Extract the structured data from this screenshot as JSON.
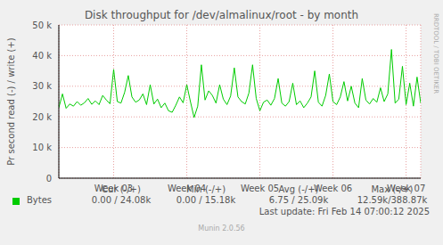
{
  "chart_data": {
    "type": "line",
    "title": "Disk throughput for /dev/almalinux/root - by month",
    "y_label": "Pr second read (-) / write (+)",
    "x": [
      2.25,
      2.3,
      2.35,
      2.4,
      2.45,
      2.5,
      2.55,
      2.6,
      2.65,
      2.7,
      2.75,
      2.8,
      2.85,
      2.9,
      2.95,
      3.0,
      3.05,
      3.1,
      3.15,
      3.2,
      3.25,
      3.3,
      3.35,
      3.4,
      3.45,
      3.5,
      3.55,
      3.6,
      3.65,
      3.7,
      3.75,
      3.8,
      3.85,
      3.9,
      3.95,
      4.0,
      4.05,
      4.1,
      4.15,
      4.2,
      4.25,
      4.3,
      4.35,
      4.4,
      4.45,
      4.5,
      4.55,
      4.6,
      4.65,
      4.7,
      4.75,
      4.8,
      4.85,
      4.9,
      4.95,
      5.0,
      5.05,
      5.1,
      5.15,
      5.2,
      5.25,
      5.3,
      5.35,
      5.4,
      5.45,
      5.5,
      5.55,
      5.6,
      5.65,
      5.7,
      5.75,
      5.8,
      5.85,
      5.9,
      5.95,
      6.0,
      6.05,
      6.1,
      6.15,
      6.2,
      6.25,
      6.3,
      6.35,
      6.4,
      6.45,
      6.5,
      6.55,
      6.6,
      6.65,
      6.7,
      6.75,
      6.8,
      6.85,
      6.9,
      6.95,
      7.0,
      7.05,
      7.1,
      7.15,
      7.2
    ],
    "series": [
      {
        "name": "Bytes",
        "color": "#00cc00",
        "values": [
          23000,
          27500,
          22800,
          24200,
          23500,
          25000,
          23800,
          24600,
          26000,
          24100,
          25200,
          24000,
          27000,
          25500,
          24300,
          35500,
          25000,
          24500,
          28000,
          33500,
          26500,
          24800,
          25500,
          27500,
          24000,
          30500,
          24200,
          25800,
          23000,
          24500,
          22000,
          21500,
          23800,
          26500,
          24600,
          30500,
          25000,
          19800,
          23500,
          37000,
          25500,
          28500,
          27000,
          24500,
          30500,
          25800,
          24000,
          26800,
          36000,
          26500,
          25000,
          24200,
          27800,
          37000,
          26000,
          22000,
          24800,
          25500,
          23800,
          26000,
          32500,
          24500,
          23500,
          25000,
          31000,
          24000,
          25200,
          23000,
          24500,
          26500,
          35000,
          24800,
          23500,
          27000,
          34000,
          25000,
          24000,
          26500,
          31500,
          25200,
          30000,
          24500,
          23000,
          32500,
          25500,
          24200,
          26000,
          24800,
          29500,
          25000,
          27500,
          42000,
          24500,
          25800,
          36500,
          24000,
          31000,
          23500,
          33000,
          24500
        ]
      }
    ],
    "xlim": [
      2.25,
      7.2
    ],
    "xticks": [
      {
        "value": 3,
        "label": "Week 03"
      },
      {
        "value": 4,
        "label": "Week 04"
      },
      {
        "value": 5,
        "label": "Week 05"
      },
      {
        "value": 6,
        "label": "Week 06"
      },
      {
        "value": 7,
        "label": "Week 07"
      }
    ],
    "ylim": [
      0,
      50000
    ],
    "yticks": [
      0,
      {
        "value": 10000,
        "label": "10 k"
      },
      {
        "value": 20000,
        "label": "20 k"
      },
      {
        "value": 30000,
        "label": "30 k"
      },
      {
        "value": 40000,
        "label": "40 k"
      },
      {
        "value": 50000,
        "label": "50 k"
      }
    ],
    "grid": true,
    "summary": {
      "columns": [
        "Cur (-/+)",
        "Min (-/+)",
        "Avg (-/+)",
        "Max (-/+)"
      ],
      "values": [
        "0.00 / 24.08k",
        "0.00 / 15.18k",
        "6.75 / 25.09k",
        "12.59k/388.87k"
      ]
    },
    "footer": "Last update: Fri Feb 14 07:00:12 2025",
    "credit": "Munin 2.0.56",
    "watermark": "RRDTOOL / TOBI OETIKER"
  }
}
